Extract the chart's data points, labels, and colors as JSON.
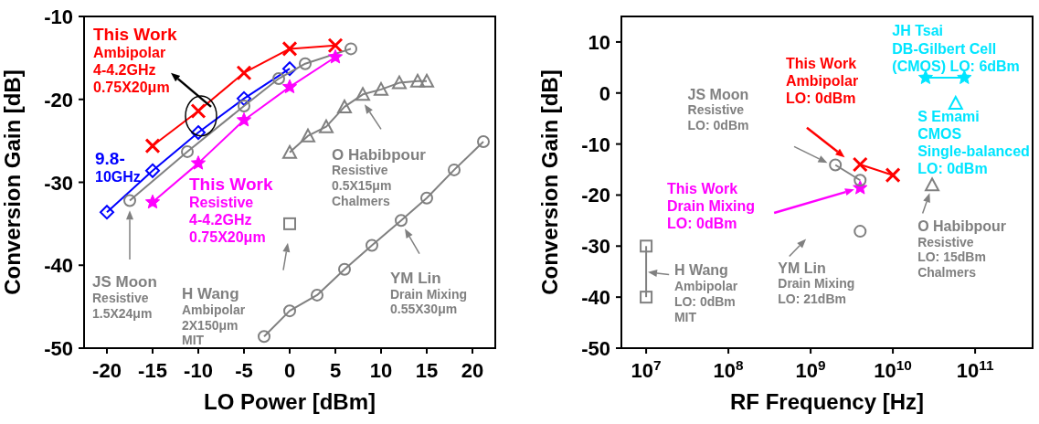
{
  "chart_data": [
    {
      "type": "line",
      "xlabel": "LO Power [dBm]",
      "ylabel": "Conversion Gain [dB]",
      "xlim": [
        -22.5,
        22.5
      ],
      "xticks": [
        -20,
        -15,
        -10,
        -5,
        0,
        5,
        10,
        15,
        20
      ],
      "ylim": [
        -50,
        -10
      ],
      "yticks": [
        -50,
        -40,
        -30,
        -20,
        -10
      ],
      "grid": false,
      "line_style": "solid",
      "series": [
        {
          "color": "#ff0000",
          "marker": "cross",
          "x": [
            -15,
            -10,
            -5,
            0,
            5
          ],
          "values": [
            -25.6,
            -21.4,
            -16.8,
            -13.9,
            -13.5
          ]
        },
        {
          "color": "#0000ff",
          "marker": "diamond",
          "x": [
            -20,
            -15,
            -10,
            -5,
            0
          ],
          "values": [
            -33.6,
            -28.6,
            -24.0,
            -19.9,
            -16.3
          ]
        },
        {
          "color": "#808080",
          "marker": "circle",
          "x": [
            -17.5,
            -11.2,
            -5,
            -1.2,
            1.7,
            6.7
          ],
          "values": [
            -32.2,
            -26.3,
            -20.8,
            -17.5,
            -15.7,
            -13.9
          ]
        },
        {
          "color": "#ff00ff",
          "marker": "star",
          "x": [
            -15,
            -10,
            -5,
            0,
            5
          ],
          "values": [
            -32.4,
            -27.7,
            -22.5,
            -18.5,
            -14.9
          ]
        },
        {
          "type": "scatter",
          "color": "#808080",
          "marker": "square",
          "x": [
            0
          ],
          "values": [
            -35.0
          ]
        },
        {
          "color": "#808080",
          "marker": "triangle",
          "x": [
            0,
            2,
            4,
            6,
            8,
            10,
            12,
            14,
            15
          ],
          "values": [
            -26.4,
            -24.4,
            -23.3,
            -20.9,
            -19.4,
            -18.8,
            -18.0,
            -17.8,
            -17.8
          ]
        },
        {
          "color": "#808080",
          "marker": "circle",
          "x": [
            -2.8,
            0,
            3,
            6,
            9,
            12.2,
            15,
            18,
            21.2
          ],
          "values": [
            -48.6,
            -45.5,
            -43.6,
            -40.5,
            -37.6,
            -34.6,
            -31.9,
            -28.5,
            -25.1
          ]
        }
      ],
      "annotations": [
        {
          "text": "This Work\nAmbipolar\n4-4.2GHz\n0.75X20μm",
          "x": -10,
          "y": -21.4
        },
        {
          "text": "9.8-\n10GHz",
          "x": -15,
          "y": -28.6
        },
        "JS Moon\nResistive\n1.5X24μm",
        {
          "text": "This Work\nResistive\n4-4.2GHz\n0.75X20μm",
          "x": -10,
          "y": -27.7
        },
        "H Wang\nAmbipolar\n2X150μm\nMIT",
        "O Habibpour\nResistive\n0.5X15μm\nChalmers",
        "YM Lin\nDrain Mixing\n0.55X30μm"
      ]
    },
    {
      "type": "line",
      "xlabel": "RF Frequency [Hz]",
      "ylabel": "Conversion Gain [dB]",
      "log": "x",
      "xlim": [
        5000000,
        500000000000
      ],
      "xticks": [
        {
          "value": 10000000,
          "label": "10$^{7}$"
        },
        {
          "value": 100000000,
          "label": "10$^{8}$"
        },
        {
          "value": 1000000000,
          "label": "10$^{9}$"
        },
        {
          "value": 10000000000,
          "label": "10$^{10}$"
        },
        {
          "value": 100000000000,
          "label": "10$^{11}$"
        }
      ],
      "ylim": [
        -50,
        15
      ],
      "yticks": [
        -50,
        -40,
        -30,
        -20,
        -10,
        0,
        10
      ],
      "grid": false,
      "line_style": "solid",
      "series": [
        {
          "color": "#ff0000",
          "marker": "cross",
          "x": [
            4000000000,
            10000000000
          ],
          "values": [
            -14.0,
            -16.1
          ]
        },
        {
          "type": "scatter",
          "color": "#ff00ff",
          "marker": "star",
          "x": [
            4000000000
          ],
          "values": [
            -18.6
          ]
        },
        {
          "color": "#808080",
          "marker": "circle",
          "x": [
            2000000000,
            4000000000
          ],
          "values": [
            -14.1,
            -17.1
          ]
        },
        {
          "type": "scatter",
          "color": "#808080",
          "marker": "circle",
          "x": [
            4000000000
          ],
          "values": [
            -27.1
          ]
        },
        {
          "color": "#808080",
          "marker": "square",
          "x": [
            10000000,
            10000000
          ],
          "values": [
            -30,
            -40
          ]
        },
        {
          "type": "scatter",
          "color": "#808080",
          "marker": "triangle",
          "x": [
            30000000000
          ],
          "values": [
            -18
          ]
        },
        {
          "color": "#00e5ff",
          "marker": "star",
          "x": [
            25000000000,
            74000000000
          ],
          "values": [
            3,
            3
          ]
        },
        {
          "type": "scatter",
          "color": "#00e5ff",
          "marker": "triangle",
          "x": [
            58000000000
          ],
          "values": [
            -2
          ]
        }
      ],
      "annotations": [
        "This Work\nAmbipolar\nLO: 0dBm",
        "This Work\nDrain Mixing\nLO: 0dBm",
        "JS Moon\nResistive\nLO: 0dBm",
        {
          "text": "YM Lin\nDrain Mixing\nLO: 21dBm",
          "x": 4000000000,
          "y": -27.1
        },
        {
          "text": "H Wang\nAmbipolar\nLO: 0dBm\nMIT",
          "x": 10000000,
          "y": -35
        },
        {
          "text": "O Habibpour\nResistive\nLO: 15dBm\nChalmers",
          "x": 30000000000,
          "y": -18
        },
        {
          "text": "JH Tsai\nDB-Gilbert Cell\n(CMOS) LO: 6dBm",
          "x": 25000000000,
          "y": 3
        },
        {
          "text": "S Emami\nCMOS\nSingle-balanced\nLO: 0dBm",
          "x": 58000000000,
          "y": -2
        }
      ]
    }
  ]
}
